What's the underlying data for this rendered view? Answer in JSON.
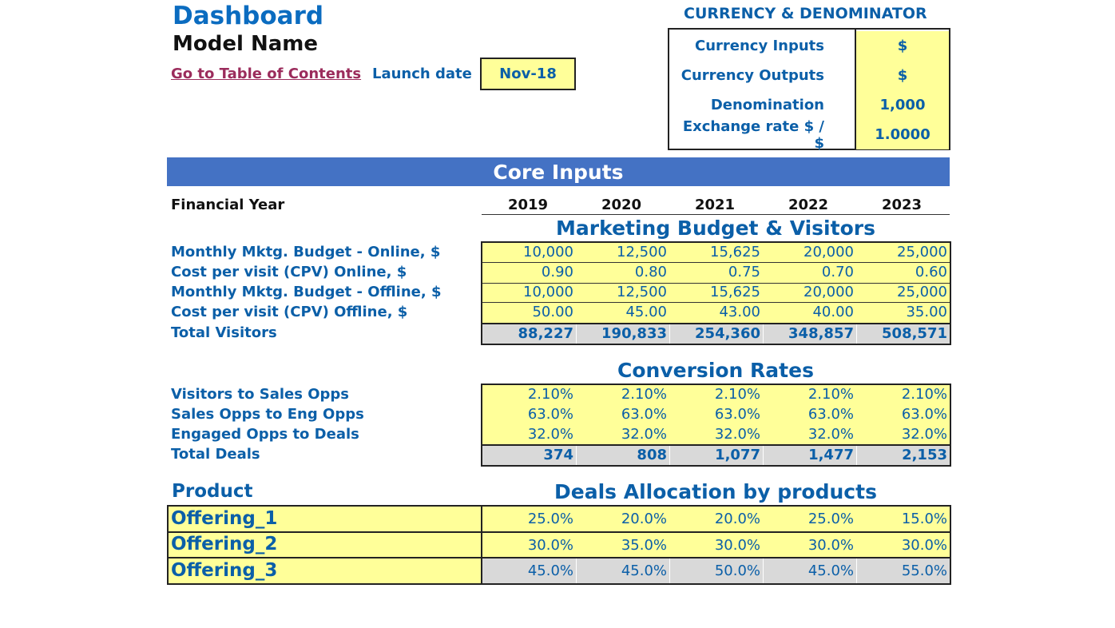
{
  "header": {
    "title": "Dashboard",
    "model_name": "Model Name",
    "toc_link": "Go to Table of Contents",
    "launch_label": "Launch date",
    "launch_value": "Nov-18"
  },
  "currency": {
    "heading": "CURRENCY & DENOMINATOR",
    "rows": [
      {
        "label": "Currency Inputs",
        "value": "$"
      },
      {
        "label": "Currency Outputs",
        "value": "$"
      },
      {
        "label": "Denomination",
        "value": "1,000"
      },
      {
        "label": "Exchange rate $ / $",
        "value": "1.0000"
      }
    ]
  },
  "core_inputs": {
    "banner": "Core Inputs",
    "fy_label": "Financial Year",
    "years": [
      "2019",
      "2020",
      "2021",
      "2022",
      "2023"
    ]
  },
  "marketing": {
    "title": "Marketing Budget & Visitors",
    "rows": [
      {
        "label": "Monthly Mktg. Budget - Online, $",
        "values": [
          "10,000",
          "12,500",
          "15,625",
          "20,000",
          "25,000"
        ]
      },
      {
        "label": "Cost per visit (CPV) Online, $",
        "values": [
          "0.90",
          "0.80",
          "0.75",
          "0.70",
          "0.60"
        ]
      },
      {
        "label": "Monthly Mktg. Budget - Offline, $",
        "values": [
          "10,000",
          "12,500",
          "15,625",
          "20,000",
          "25,000"
        ]
      },
      {
        "label": "Cost per visit (CPV) Offline, $",
        "values": [
          "50.00",
          "45.00",
          "43.00",
          "40.00",
          "35.00"
        ]
      },
      {
        "label": "Total Visitors",
        "values": [
          "88,227",
          "190,833",
          "254,360",
          "348,857",
          "508,571"
        ]
      }
    ]
  },
  "conversion": {
    "title": "Conversion Rates",
    "rows": [
      {
        "label": "Visitors to Sales Opps",
        "values": [
          "2.10%",
          "2.10%",
          "2.10%",
          "2.10%",
          "2.10%"
        ]
      },
      {
        "label": "Sales Opps to Eng Opps",
        "values": [
          "63.0%",
          "63.0%",
          "63.0%",
          "63.0%",
          "63.0%"
        ]
      },
      {
        "label": "Engaged Opps to Deals",
        "values": [
          "32.0%",
          "32.0%",
          "32.0%",
          "32.0%",
          "32.0%"
        ]
      },
      {
        "label": "Total Deals",
        "values": [
          "374",
          "808",
          "1,077",
          "1,477",
          "2,153"
        ]
      }
    ]
  },
  "products": {
    "product_label": "Product",
    "title": "Deals Allocation by products",
    "rows": [
      {
        "label": "Offering_1",
        "values": [
          "25.0%",
          "20.0%",
          "20.0%",
          "25.0%",
          "15.0%"
        ]
      },
      {
        "label": "Offering_2",
        "values": [
          "30.0%",
          "35.0%",
          "30.0%",
          "30.0%",
          "30.0%"
        ]
      },
      {
        "label": "Offering_3",
        "values": [
          "45.0%",
          "45.0%",
          "50.0%",
          "45.0%",
          "55.0%"
        ]
      }
    ]
  },
  "colors": {
    "input_fill": "#ffff99",
    "calc_fill": "#d9d9d9",
    "banner": "#4472c4",
    "text_blue": "#0b5fa8",
    "link": "#9b2c5c"
  }
}
